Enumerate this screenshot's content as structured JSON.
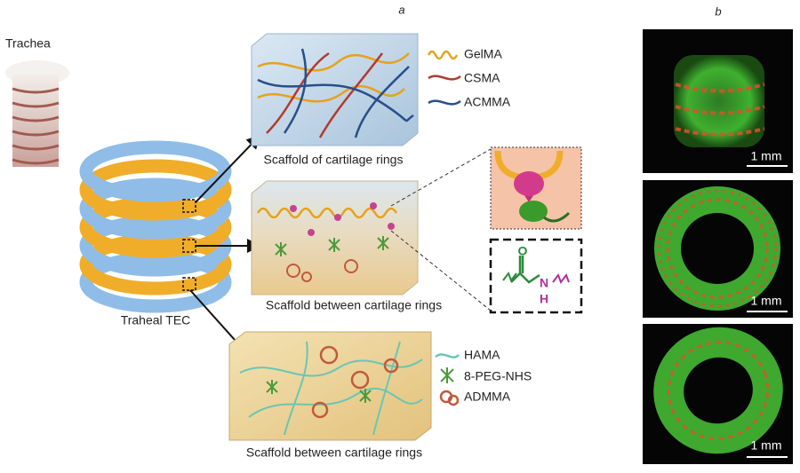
{
  "panel_labels": {
    "a": "a",
    "b": "b"
  },
  "panel_a": {
    "trachea_label": "Trachea",
    "tec_label": "Traheal TEC",
    "scaffolds": [
      "Scaffold of cartilage rings",
      "Scaffold between cartilage rings",
      "Scaffold between cartilage rings"
    ],
    "legend_top": [
      "GelMA",
      "CSMA",
      "ACMMA"
    ],
    "legend_bottom": [
      "HAMA",
      "8-PEG-NHS",
      "ADMMA"
    ],
    "chemical": {
      "oxygen": "O",
      "nitrogen": "N",
      "hydrogen": "H"
    }
  },
  "panel_b": {
    "scale_bars": [
      "1 mm",
      "1 mm",
      "1 mm"
    ]
  }
}
